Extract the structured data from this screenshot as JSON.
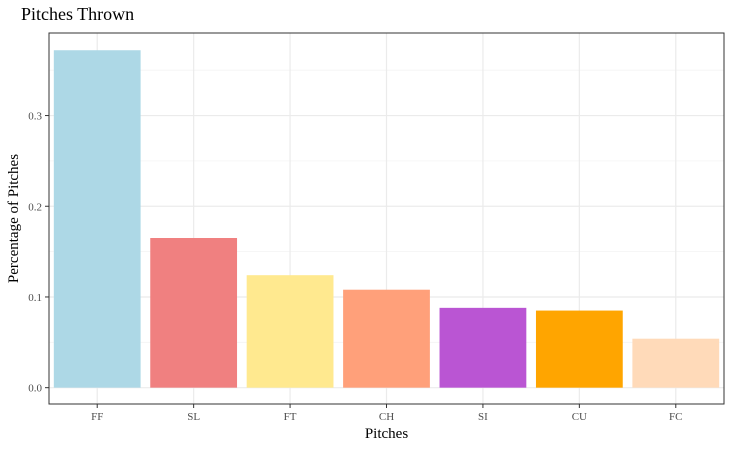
{
  "chart_data": {
    "type": "bar",
    "title": "Pitches Thrown",
    "xlabel": "Pitches",
    "ylabel": "Percentage of Pitches",
    "categories": [
      "FF",
      "SL",
      "FT",
      "CH",
      "SI",
      "CU",
      "FC"
    ],
    "values": [
      0.372,
      0.165,
      0.124,
      0.108,
      0.088,
      0.085,
      0.054
    ],
    "colors": [
      "#add8e6",
      "#f08080",
      "#ffe98f",
      "#ffa07a",
      "#ba55d3",
      "#ffa500",
      "#ffdab9"
    ],
    "ylim": [
      -0.018,
      0.391
    ],
    "yticks": [
      0.0,
      0.1,
      0.2,
      0.3
    ],
    "ytick_labels": [
      "0.0",
      "0.1",
      "0.2",
      "0.3"
    ],
    "grid": true,
    "legend": "none",
    "theme": {
      "panel_border": "#333333",
      "grid_major": "#ebebeb",
      "grid_minor": "#f4f4f4",
      "tick_text": "#4d4d4d"
    }
  }
}
